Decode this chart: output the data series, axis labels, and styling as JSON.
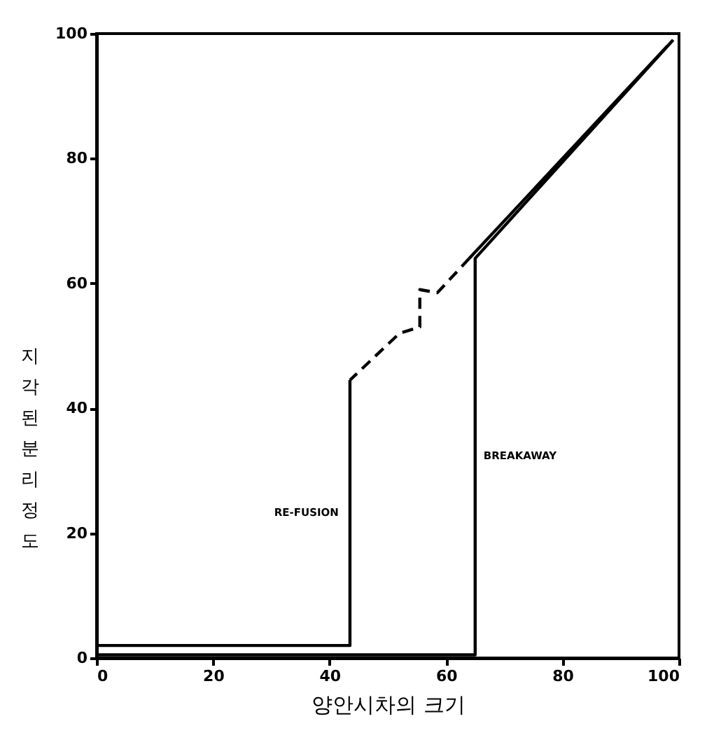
{
  "chart_data": {
    "type": "line",
    "xlabel": "양안시차의 크기",
    "ylabel": "지각된 분리정도",
    "xlim": [
      0,
      100
    ],
    "ylim": [
      0,
      100
    ],
    "xticks": [
      0,
      20,
      40,
      60,
      80,
      100
    ],
    "yticks": [
      0,
      20,
      40,
      60,
      80,
      100
    ],
    "grid": false,
    "marker": "none",
    "series": [
      {
        "name": "BREAKAWAY",
        "color": "#000000",
        "line_style": "solid",
        "x": [
          0,
          65,
          65,
          99
        ],
        "values": [
          0.5,
          0.5,
          64,
          99
        ]
      },
      {
        "color": "#000000",
        "line_style": "solid",
        "x": [
          98,
          64
        ],
        "values": [
          98,
          64
        ]
      },
      {
        "color": "#000000",
        "line_style": "dashed",
        "x": [
          64,
          58.5,
          55.5,
          55.5,
          52,
          43.5
        ],
        "values": [
          64,
          58.5,
          59,
          53,
          52,
          44.5
        ]
      },
      {
        "name": "RE-FUSION",
        "color": "#000000",
        "line_style": "solid",
        "x": [
          43.5,
          43.5,
          0
        ],
        "values": [
          44.5,
          2,
          2
        ]
      }
    ]
  }
}
